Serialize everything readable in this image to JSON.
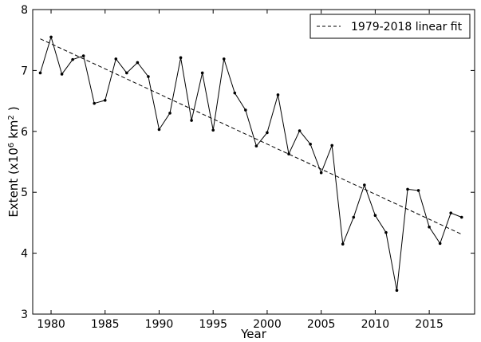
{
  "chart_data": {
    "type": "line",
    "xlabel": "Year",
    "ylabel_main": "Extent (x10",
    "ylabel_sup_1": "6",
    "ylabel_unit": "km",
    "ylabel_sup_2": "2",
    "ylabel_close": ")",
    "xlim": [
      1978.3,
      2019.2
    ],
    "ylim": [
      3,
      8
    ],
    "x_ticks": [
      1980,
      1985,
      1990,
      1995,
      2000,
      2005,
      2010,
      2015
    ],
    "x_tick_labels": [
      "1980",
      "1985",
      "1990",
      "1995",
      "2000",
      "2005",
      "2010",
      "2015"
    ],
    "y_ticks": [
      3,
      4,
      5,
      6,
      7,
      8
    ],
    "y_tick_labels": [
      "3",
      "4",
      "5",
      "6",
      "7",
      "8"
    ],
    "grid": false,
    "legend_position": "top-right",
    "series": [
      {
        "style": "solid-with-markers",
        "color": "#000000",
        "x": [
          1979,
          1980,
          1981,
          1982,
          1983,
          1984,
          1985,
          1986,
          1987,
          1988,
          1989,
          1990,
          1991,
          1992,
          1993,
          1994,
          1995,
          1996,
          1997,
          1998,
          1999,
          2000,
          2001,
          2002,
          2003,
          2004,
          2005,
          2006,
          2007,
          2008,
          2009,
          2010,
          2011,
          2012,
          2013,
          2014,
          2015,
          2016,
          2017,
          2018
        ],
        "values": [
          6.96,
          7.55,
          6.94,
          7.18,
          7.24,
          6.46,
          6.51,
          7.19,
          6.96,
          7.13,
          6.9,
          6.03,
          6.3,
          7.21,
          6.18,
          6.96,
          6.02,
          7.19,
          6.63,
          6.35,
          5.76,
          5.98,
          6.6,
          5.63,
          6.01,
          5.79,
          5.32,
          5.77,
          4.15,
          4.59,
          5.12,
          4.62,
          4.34,
          3.39,
          5.05,
          5.03,
          4.43,
          4.16,
          4.66,
          4.59
        ]
      },
      {
        "name": "1979-2018 linear fit",
        "style": "dashed",
        "color": "#000000",
        "x": [
          1979,
          2018
        ],
        "values": [
          7.52,
          4.31
        ]
      }
    ]
  }
}
